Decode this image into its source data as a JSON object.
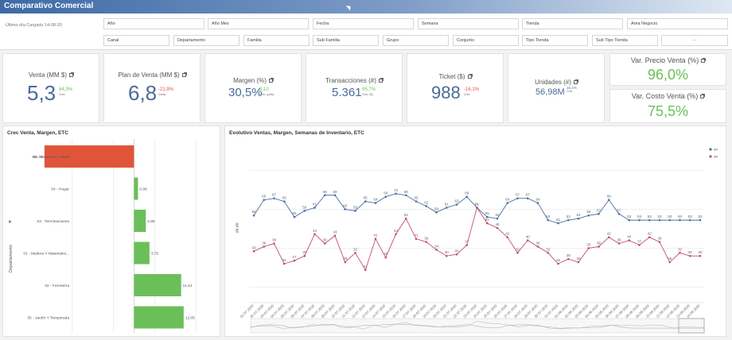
{
  "app": {
    "title": "Comparativo Comercial"
  },
  "filters": {
    "last_load": "Último día Cargado 14-08-20",
    "row1": [
      "Año",
      "Año Mes",
      "Fecha",
      "Semana",
      "Tienda",
      "Area Negocio"
    ],
    "row2": [
      "Canal",
      "Departamento",
      "Familia",
      "Sub Familia",
      "Grupo",
      "Conjunto",
      "Tipo Tienda",
      "Sub Tipo Tienda",
      "···"
    ]
  },
  "kpis": {
    "venta": {
      "title": "Venta (MM $)",
      "value": "5,3",
      "pct": "64,3%",
      "sub": "Crec."
    },
    "plan": {
      "title": "Plan de Venta (MM $)",
      "value": "6,8",
      "pct": "-21,9%",
      "sub": "Cump."
    },
    "margen": {
      "title": "Margen (%)",
      "value": "30,5%",
      "pct": "8,10",
      "sub": "Crec. (pnts)"
    },
    "trans": {
      "title": "Transacciones (#)",
      "value": "5.361",
      "pct": "95,7%",
      "sub": "Crec. ($)"
    },
    "ticket": {
      "title": "Ticket ($)",
      "value": "988",
      "pct": "-16,1%",
      "sub": "Crec."
    },
    "unidades": {
      "title": "Unidades (#)",
      "value": "56,98M",
      "pct": "16,1%",
      "sub": "Crec."
    },
    "precio": {
      "title": "Var. Precio Venta (%)",
      "value": "96,0%"
    },
    "costo": {
      "title": "Var. Costo Venta (%)",
      "value": "75,5%"
    }
  },
  "colors": {
    "blue": "#4a6fa5",
    "red": "#c0506b",
    "green": "#6bbf59",
    "orange": "#e0553a"
  },
  "bar_panel": {
    "title": "Crec Venta, Margen, ETC",
    "axis_label": "Departamento",
    "chart_data": {
      "type": "bar",
      "categories": [
        "06 - Servicios Y Otros",
        "04 - Hogar",
        "03 - Terminaciones",
        "01 - Madera Y Materiales...",
        "02 - Ferretería",
        "05 - Jardín Y Temporada"
      ],
      "values": [
        -21.74,
        0.96,
        2.86,
        3.75,
        11.44,
        12.05
      ],
      "labels": [
        "-21,74",
        "0,96",
        "2,86",
        "3,75",
        "11,44",
        "12,05"
      ],
      "xlim": [
        -25,
        20
      ]
    }
  },
  "line_panel": {
    "title": "Evolutivo Ventas, Margen, Semanas de Inventario, ETC",
    "y_axis_label": "##,##",
    "legend": [
      "##",
      "##"
    ],
    "chart_data": {
      "type": "line",
      "x": [
        "01-07-2020",
        "02-07-2020",
        "03-07-2020",
        "04-07-2020",
        "05-07-2020",
        "06-07-2020",
        "07-07-2020",
        "08-07-2020",
        "09-07-2020",
        "10-07-2020",
        "11-07-2020",
        "12-07-2020",
        "13-07-2020",
        "14-07-2020",
        "15-07-2020",
        "16-07-2020",
        "17-07-2020",
        "18-07-2020",
        "19-07-2020",
        "20-07-2020",
        "21-07-2020",
        "22-07-2020",
        "23-07-2020",
        "24-07-2020",
        "25-07-2020",
        "26-07-2020",
        "27-07-2020",
        "28-07-2020",
        "29-07-2020",
        "30-07-2020",
        "31-07-2020",
        "01-08-2020",
        "02-08-2020",
        "03-08-2020",
        "04-08-2020",
        "05-08-2020",
        "06-08-2020",
        "07-08-2020",
        "08-08-2020",
        "09-08-2020",
        "10-08-2020",
        "11-08-2020",
        "12-08-2020",
        "13-08-2020",
        "14-08-2020"
      ],
      "series": [
        {
          "name": "##",
          "values": [
            56,
            66,
            67,
            65,
            55,
            59,
            61,
            69,
            69,
            60,
            59,
            65,
            64,
            68,
            70,
            69,
            65,
            62,
            58,
            61,
            63,
            68,
            61,
            55,
            54,
            64,
            67,
            67,
            64,
            53,
            51,
            53,
            54,
            56,
            57,
            66,
            57,
            53,
            53,
            53,
            53,
            53,
            53,
            53,
            53
          ]
        },
        {
          "name": "##",
          "values": [
            33,
            36,
            38,
            25,
            27,
            30,
            44,
            38,
            43,
            26,
            32,
            21,
            41,
            29,
            44,
            54,
            41,
            39,
            34,
            30,
            31,
            37,
            61,
            51,
            48,
            42,
            32,
            40,
            36,
            32,
            25,
            28,
            26,
            35,
            36,
            42,
            38,
            40,
            37,
            42,
            39,
            26,
            32,
            30,
            30
          ]
        }
      ],
      "value_labels_blue": [
        "56",
        "66",
        "67",
        "65",
        "55",
        "59",
        "61",
        "69",
        "69",
        "60",
        "59",
        "65",
        "64",
        "68",
        "70",
        "69",
        "65",
        "62",
        "58",
        "61",
        "63",
        "68",
        "61",
        "55",
        "54",
        "64",
        "67",
        "67",
        "64",
        "53",
        "51",
        "53",
        "54",
        "56",
        "57",
        "66",
        "57",
        "53",
        "53",
        "53",
        "53",
        "53",
        "53",
        "53",
        "53"
      ],
      "value_labels_red": [
        "33",
        "36",
        "38",
        "25",
        "27",
        "30",
        "44",
        "38",
        "43",
        "26",
        "32",
        "21",
        "41",
        "29",
        "44",
        "54",
        "41",
        "39",
        "34",
        "30",
        "31",
        "37",
        "61",
        "51",
        "48",
        "42",
        "32",
        "40",
        "36",
        "32",
        "25",
        "28",
        "26",
        "35",
        "36",
        "42",
        "38",
        "40",
        "37",
        "42",
        "39",
        "26",
        "32",
        "30",
        "30"
      ]
    }
  }
}
